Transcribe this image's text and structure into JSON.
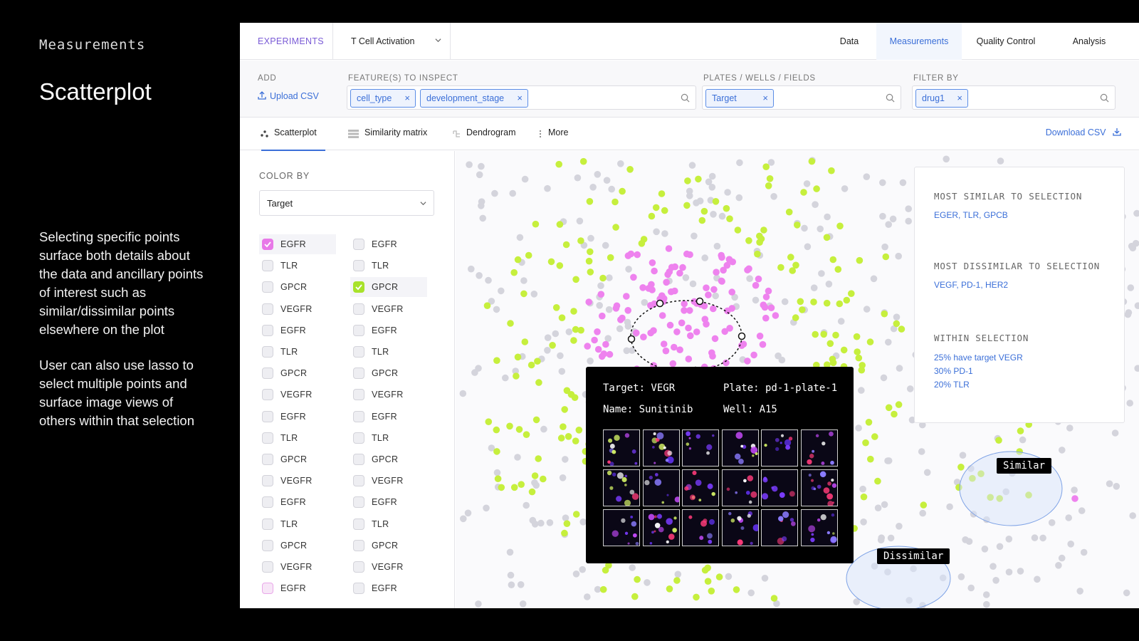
{
  "side": {
    "kicker": "Measurements",
    "title": "Scatterplot",
    "para1": "Selecting specific points surface both details about the data and ancillary points of interest such as similar/dissimilar points elsewhere on the plot",
    "para2": "User can also use lasso to select multiple points and surface image views of others within that selection"
  },
  "topnav": {
    "brand": "EXPERIMENTS",
    "experiment": "T Cell Activation",
    "tabs": [
      "Data",
      "Measurements",
      "Quality Control",
      "Analysis"
    ],
    "active_tab": "Measurements"
  },
  "filters": {
    "add_label": "ADD",
    "upload_label": "Upload CSV",
    "features_label": "FEATURE(S) TO INSPECT",
    "features": [
      "cell_type",
      "development_stage"
    ],
    "plates_label": "PLATES / WELLS / FIELDS",
    "plates": [
      "Target"
    ],
    "filter_label": "FILTER BY",
    "filter": [
      "drug1"
    ]
  },
  "viewtabs": {
    "tabs": [
      "Scatterplot",
      "Similarity matrix",
      "Dendrogram",
      "More"
    ],
    "active": "Scatterplot",
    "download": "Download CSV"
  },
  "colorby": {
    "label": "COLOR BY",
    "value": "Target",
    "col1": [
      "EGFR",
      "TLR",
      "GPCR",
      "VEGFR",
      "EGFR",
      "TLR",
      "GPCR",
      "VEGFR",
      "EGFR",
      "TLR",
      "GPCR",
      "VEGFR",
      "EGFR",
      "TLR",
      "GPCR",
      "VEGFR",
      "EGFR"
    ],
    "col2": [
      "EGFR",
      "TLR",
      "GPCR",
      "VEGFR",
      "EGFR",
      "TLR",
      "GPCR",
      "VEGFR",
      "EGFR",
      "TLR",
      "GPCR",
      "VEGFR",
      "EGFR",
      "TLR",
      "GPCR",
      "VEGFR",
      "EGFR"
    ],
    "checked_col1": [
      0
    ],
    "checked_col2": [
      2
    ],
    "check_color_col1": "#e879e8",
    "check_color_col2": "#a8e22b"
  },
  "tooltip": {
    "target": "Target: VEGR",
    "plate": "Plate: pd-1-plate-1",
    "name": "Name: Sunitinib",
    "well": "Well: A15"
  },
  "insight": {
    "similar_label": "MOST SIMILAR TO SELECTION",
    "similar_value": "EGER, TLR, GPCB",
    "dissimilar_label": "MOST DISSIMILAR TO SELECTION",
    "dissimilar_value": "VEGF, PD-1, HER2",
    "within_label": "WITHIN SELECTION",
    "within_values": [
      "25% have target VEGR",
      "30% PD-1",
      "20% TLR"
    ]
  },
  "tags": {
    "similar": "Similar",
    "dissimilar": "Dissimilar"
  },
  "colors": {
    "green": "#c6ef3d",
    "pink": "#ee82ee",
    "grey": "#d4d4dc",
    "accent": "#3b6fd8"
  }
}
